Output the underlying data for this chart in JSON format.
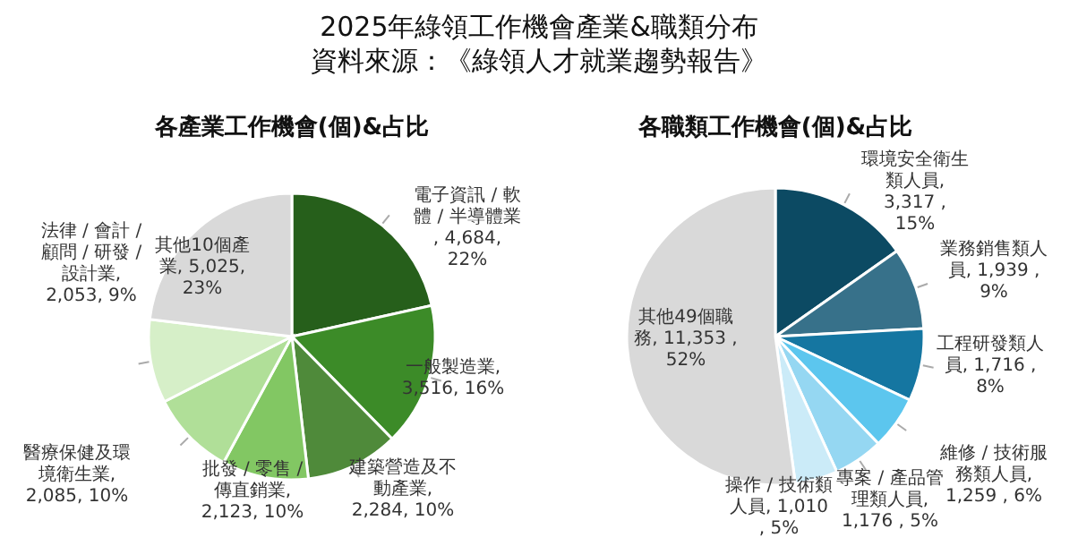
{
  "chart_data": [
    {
      "type": "pie",
      "title": "各產業工作機會(個)&占比",
      "annotations": [
        "2025年綠領工作機會產業&職類分布",
        "資料來源：《綠領人才就業趨勢報告》"
      ],
      "categories": [
        "電子資訊 / 軟體 / 半導體業",
        "一般製造業",
        "建築營造及不動產業",
        "批發 / 零售 / 傳直銷業",
        "醫療保健及環境衛生業",
        "法律 / 會計 / 顧問 / 研發 / 設計業",
        "其他10個產業"
      ],
      "values": [
        4684,
        3516,
        2284,
        2123,
        2085,
        2053,
        5025
      ],
      "value_labels": [
        ", 4,684, 22%",
        ", 3,516, 16%",
        ", 2,284, 10%",
        ", 2,123, 10%",
        ", 2,085, 10%",
        ", 2,053, 9%",
        ", 5,025, 23%"
      ],
      "colors": [
        "#265f1b",
        "#3c8b28",
        "#4f8a3a",
        "#82c763",
        "#b0df98",
        "#d6efc8",
        "#d9d9d9"
      ]
    },
    {
      "type": "pie",
      "title": "各職類工作機會(個)&占比",
      "categories": [
        "環境安全衛生類人員",
        "業務銷售類人員",
        "工程研發類人員",
        "維修 / 技術服務類人員",
        "專案 / 產品管理類人員",
        "操作 / 技術類人員",
        "其他49個職務"
      ],
      "values": [
        3317,
        1939,
        1716,
        1259,
        1176,
        1010,
        11353
      ],
      "value_labels": [
        ", 3,317 , 15%",
        ", 1,939 , 9%",
        ", 1,716 , 8%",
        ", 1,259 , 6%",
        ", 1,176 , 5%",
        ", 1,010 , 5%",
        ", 11,353 , 52%"
      ],
      "colors": [
        "#0c4a63",
        "#37718a",
        "#1576a1",
        "#5cc6ee",
        "#95d7f2",
        "#cbebf8",
        "#d9d9d9"
      ]
    }
  ]
}
